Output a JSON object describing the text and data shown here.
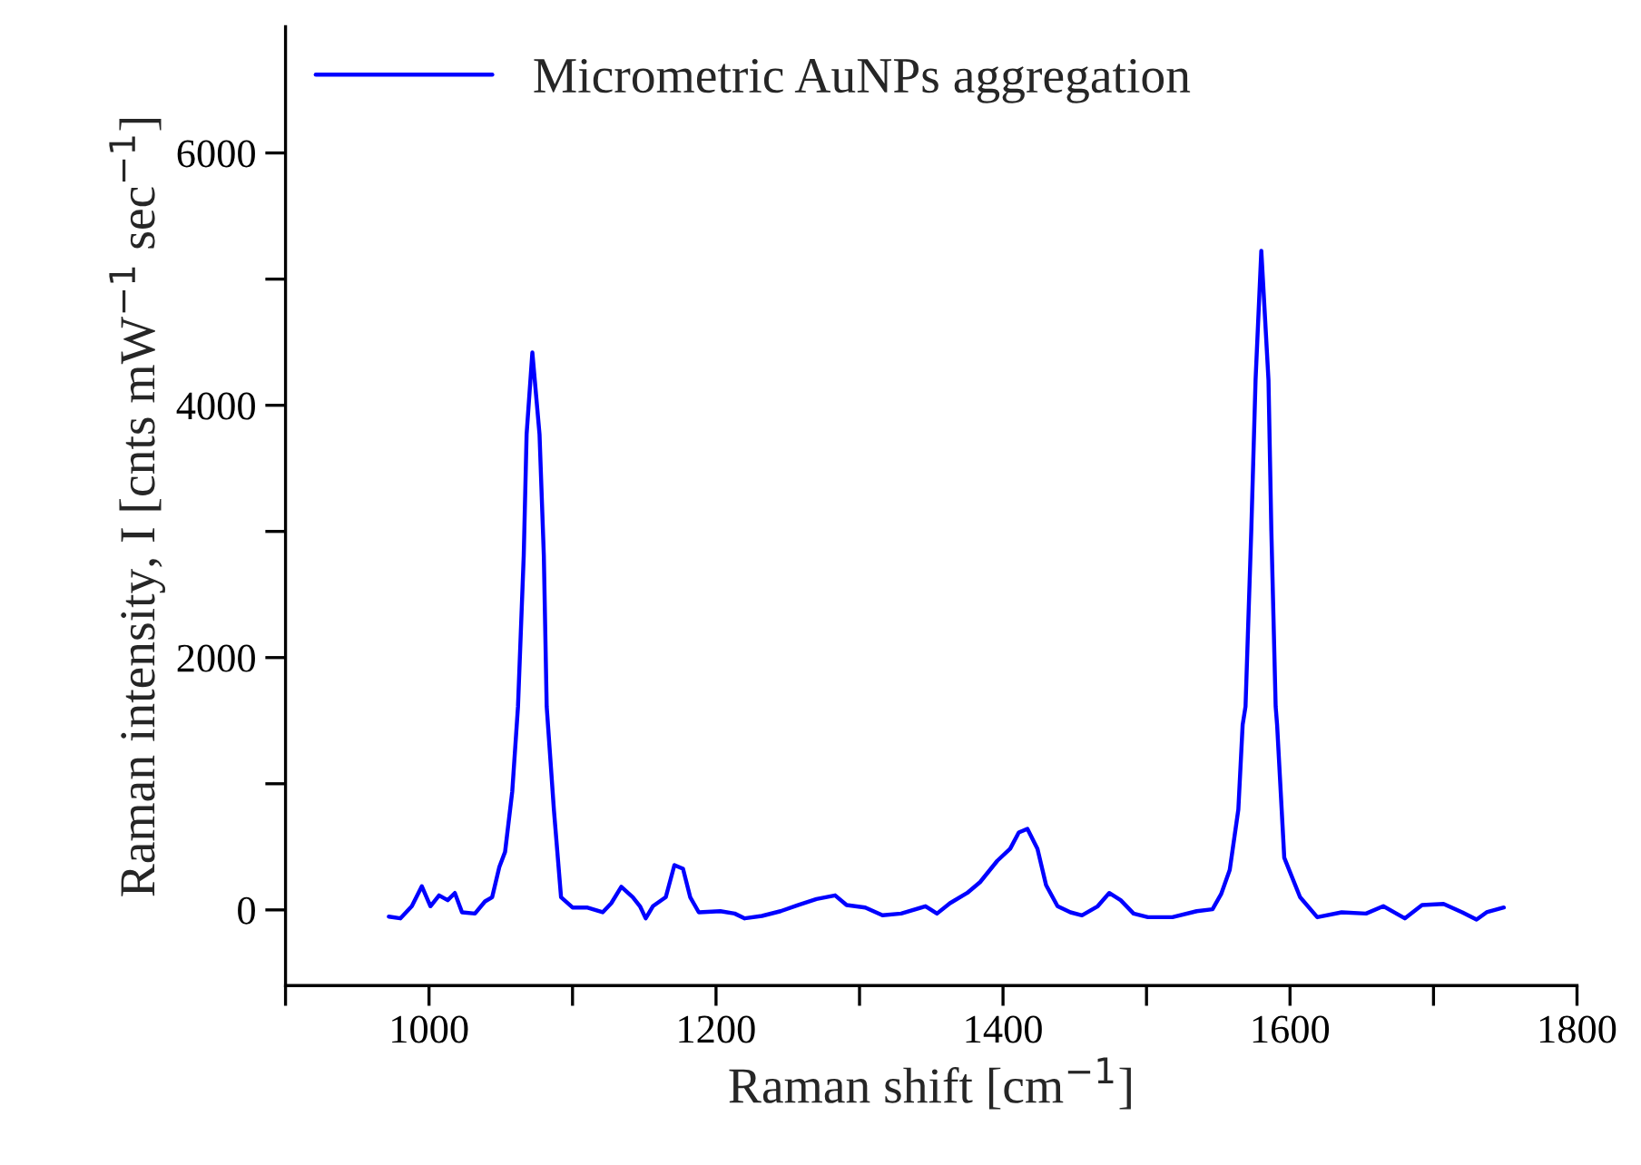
{
  "chart_data": {
    "type": "line",
    "xlabel": "Raman shift [cm$^{−1}$]",
    "ylabel": "Raman intensity, I [cnts mW$^{−1}$ sec$^{−1}$]",
    "xlim": [
      900,
      1800
    ],
    "ylim": [
      -600,
      7000
    ],
    "xticks": [
      {
        "value": 900,
        "label": null
      },
      1000,
      {
        "value": 1100,
        "label": null
      },
      1200,
      {
        "value": 1300,
        "label": null
      },
      1400,
      {
        "value": 1500,
        "label": null
      },
      1600,
      {
        "value": 1700,
        "label": null
      },
      1800
    ],
    "yticks": [
      0,
      {
        "value": 1000,
        "label": null
      },
      2000,
      {
        "value": 3000,
        "label": null
      },
      4000,
      {
        "value": 5000,
        "label": null
      },
      6000
    ],
    "grid": false,
    "legend": "top left",
    "line_style": "solid",
    "marker": "none",
    "series": [
      {
        "name": "Micrometric AuNPs aggregation",
        "color": "#0000ff",
        "x": [
          972,
          980,
          988,
          995,
          1001,
          1007,
          1013,
          1018,
          1023,
          1032,
          1039,
          1044,
          1049,
          1053,
          1058,
          1062,
          1066,
          1068,
          1072,
          1077,
          1080,
          1082,
          1087,
          1092,
          1100,
          1110,
          1121,
          1127,
          1134,
          1142,
          1147,
          1151,
          1156,
          1165,
          1171,
          1177,
          1182,
          1188,
          1203,
          1213,
          1220,
          1232,
          1245,
          1257,
          1270,
          1283,
          1291,
          1304,
          1316,
          1329,
          1346,
          1354,
          1363,
          1375,
          1384,
          1396,
          1405,
          1411,
          1417,
          1424,
          1430,
          1438,
          1447,
          1455,
          1466,
          1474,
          1482,
          1491,
          1501,
          1518,
          1535,
          1546,
          1552,
          1558,
          1564,
          1567,
          1569,
          1573,
          1576,
          1580,
          1585,
          1587,
          1590,
          1591,
          1596,
          1607,
          1619,
          1636,
          1653,
          1665,
          1680,
          1692,
          1707,
          1720,
          1730,
          1737,
          1749
        ],
        "values": [
          -53,
          -67,
          29,
          187,
          29,
          115,
          77,
          134,
          -19,
          -29,
          67,
          101,
          341,
          460,
          940,
          1612,
          2810,
          3770,
          4418,
          3770,
          2810,
          1612,
          796,
          101,
          19,
          19,
          -19,
          53,
          183,
          101,
          29,
          -67,
          29,
          101,
          355,
          326,
          101,
          -19,
          -10,
          -29,
          -67,
          -48,
          -10,
          38,
          86,
          115,
          38,
          19,
          -43,
          -29,
          29,
          -29,
          53,
          134,
          220,
          389,
          485,
          614,
          643,
          485,
          197,
          29,
          -19,
          -43,
          29,
          134,
          77,
          -29,
          -58,
          -58,
          -10,
          5,
          125,
          317,
          796,
          1468,
          1612,
          3003,
          4202,
          5224,
          4202,
          3003,
          1612,
          1468,
          413,
          101,
          -58,
          -19,
          -29,
          29,
          -67,
          38,
          48,
          -19,
          -77,
          -19,
          19
        ]
      }
    ]
  }
}
